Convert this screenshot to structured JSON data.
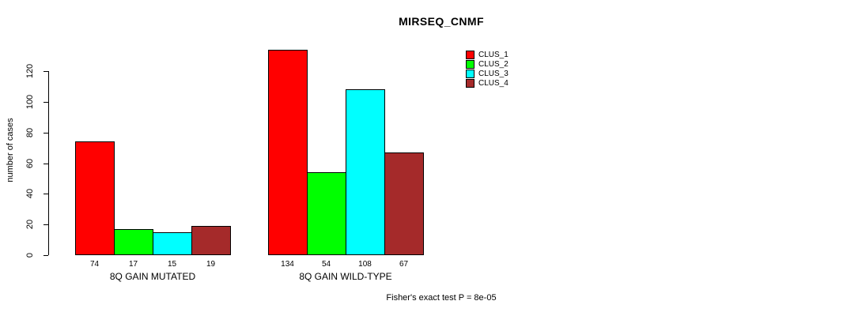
{
  "chart_data": {
    "type": "bar",
    "title": "MIRSEQ_CNMF",
    "ylabel": "number of cases",
    "categories": [
      "8Q GAIN MUTATED",
      "8Q GAIN WILD-TYPE"
    ],
    "series": [
      {
        "name": "CLUS_1",
        "color": "#FF0000",
        "values": [
          74,
          134
        ]
      },
      {
        "name": "CLUS_2",
        "color": "#00FF00",
        "values": [
          17,
          54
        ]
      },
      {
        "name": "CLUS_3",
        "color": "#00FFFF",
        "values": [
          15,
          108
        ]
      },
      {
        "name": "CLUS_4",
        "color": "#A52A2A",
        "values": [
          19,
          67
        ]
      }
    ],
    "yticks": [
      0,
      20,
      40,
      60,
      80,
      100,
      120
    ],
    "ylim": [
      0,
      134
    ],
    "grid": false,
    "legend_position": "top-right",
    "bar_value_labels_shown": true,
    "annotation": "Fisher's exact test P = 8e-05"
  }
}
